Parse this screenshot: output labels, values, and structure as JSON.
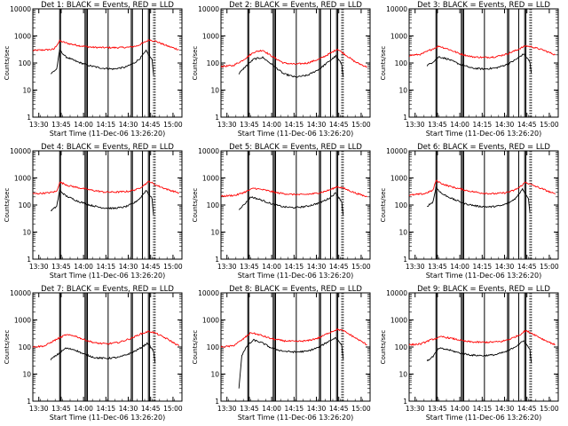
{
  "figure": {
    "panel_count": 9,
    "colors": {
      "events": "#000000",
      "lld": "#ff0000",
      "axis": "#000000",
      "background": "#ffffff"
    }
  },
  "chart_data": [
    {
      "type": "line",
      "detector": "Det 1",
      "title": "Det 1: BLACK = Events, RED = LLD",
      "xlabel": "Start Time (11-Dec-06 13:26:20)",
      "ylabel": "Counts/sec",
      "x_tick_labels": [
        "13:30",
        "13:45",
        "14:00",
        "14:15",
        "14:30",
        "14:45",
        "15:00"
      ],
      "y_tick_labels": [
        "1",
        "10",
        "100",
        "1000",
        "10000"
      ],
      "ylim": [
        1,
        10000
      ],
      "yscale": "log",
      "xlim": [
        "13:26",
        "15:06"
      ],
      "series": [
        {
          "name": "LLD",
          "color": "#ff0000",
          "x": [
            "13:26",
            "13:40",
            "13:44",
            "13:50",
            "13:58",
            "14:06",
            "14:14",
            "14:22",
            "14:30",
            "14:36",
            "14:40",
            "14:44",
            "14:48",
            "14:56",
            "15:04"
          ],
          "values": [
            290,
            320,
            650,
            520,
            430,
            380,
            370,
            370,
            380,
            430,
            550,
            720,
            650,
            430,
            310
          ]
        },
        {
          "name": "Events",
          "color": "#000000",
          "x": [
            "13:38",
            "13:42",
            "13:44",
            "13:48",
            "13:56",
            "14:04",
            "14:12",
            "14:20",
            "14:28",
            "14:34",
            "14:38",
            "14:42",
            "14:46",
            "14:47"
          ],
          "values": [
            40,
            60,
            300,
            170,
            110,
            80,
            65,
            60,
            70,
            100,
            150,
            280,
            130,
            35
          ]
        }
      ]
    },
    {
      "type": "line",
      "detector": "Det 2",
      "title": "Det 2: BLACK = Events, RED = LLD",
      "xlabel": "Start Time (11-Dec-06 13:26:20)",
      "ylabel": "Counts/sec",
      "x_tick_labels": [
        "13:30",
        "13:45",
        "14:00",
        "14:15",
        "14:30",
        "14:45",
        "15:00"
      ],
      "y_tick_labels": [
        "1",
        "10",
        "100",
        "1000",
        "10000"
      ],
      "ylim": [
        1,
        10000
      ],
      "yscale": "log",
      "xlim": [
        "13:26",
        "15:06"
      ],
      "series": [
        {
          "name": "LLD",
          "color": "#ff0000",
          "x": [
            "13:26",
            "13:34",
            "13:40",
            "13:48",
            "13:54",
            "14:00",
            "14:08",
            "14:16",
            "14:24",
            "14:32",
            "14:40",
            "14:44",
            "14:48",
            "14:56",
            "15:04"
          ],
          "values": [
            75,
            80,
            120,
            250,
            300,
            180,
            100,
            90,
            100,
            140,
            240,
            330,
            230,
            110,
            70
          ]
        },
        {
          "name": "Events",
          "color": "#000000",
          "x": [
            "13:38",
            "13:42",
            "13:48",
            "13:54",
            "14:00",
            "14:08",
            "14:16",
            "14:24",
            "14:32",
            "14:38",
            "14:43",
            "14:47",
            "14:48"
          ],
          "values": [
            40,
            70,
            140,
            160,
            90,
            40,
            30,
            35,
            60,
            110,
            180,
            90,
            30
          ]
        }
      ]
    },
    {
      "type": "line",
      "detector": "Det 3",
      "title": "Det 3: BLACK = Events, RED = LLD",
      "xlabel": "Start Time (11-Dec-06 13:26:20)",
      "ylabel": "Counts/sec",
      "x_tick_labels": [
        "13:30",
        "13:45",
        "14:00",
        "14:15",
        "14:30",
        "14:45",
        "15:00"
      ],
      "y_tick_labels": [
        "1",
        "10",
        "100",
        "1000",
        "10000"
      ],
      "ylim": [
        1,
        10000
      ],
      "yscale": "log",
      "xlim": [
        "13:26",
        "15:06"
      ],
      "series": [
        {
          "name": "LLD",
          "color": "#ff0000",
          "x": [
            "13:26",
            "13:34",
            "13:40",
            "13:46",
            "13:52",
            "14:00",
            "14:08",
            "14:16",
            "14:24",
            "14:32",
            "14:38",
            "14:44",
            "14:48",
            "14:56",
            "15:04"
          ],
          "values": [
            190,
            210,
            300,
            420,
            330,
            220,
            170,
            160,
            170,
            220,
            300,
            430,
            400,
            300,
            200
          ]
        },
        {
          "name": "Events",
          "color": "#000000",
          "x": [
            "13:38",
            "13:42",
            "13:46",
            "13:52",
            "14:00",
            "14:08",
            "14:16",
            "14:24",
            "14:32",
            "14:38",
            "14:43",
            "14:47",
            "14:48"
          ],
          "values": [
            80,
            110,
            170,
            140,
            90,
            65,
            60,
            65,
            90,
            140,
            220,
            110,
            40
          ]
        }
      ]
    },
    {
      "type": "line",
      "detector": "Det 4",
      "title": "Det 4: BLACK = Events, RED = LLD",
      "xlabel": "Start Time (11-Dec-06 13:26:20)",
      "ylabel": "Counts/sec",
      "x_tick_labels": [
        "13:30",
        "13:45",
        "14:00",
        "14:15",
        "14:30",
        "14:45",
        "15:00"
      ],
      "y_tick_labels": [
        "1",
        "10",
        "100",
        "1000",
        "10000"
      ],
      "ylim": [
        1,
        10000
      ],
      "yscale": "log",
      "xlim": [
        "13:26",
        "15:06"
      ],
      "series": [
        {
          "name": "LLD",
          "color": "#ff0000",
          "x": [
            "13:26",
            "13:36",
            "13:42",
            "13:44",
            "13:50",
            "13:58",
            "14:06",
            "14:14",
            "14:22",
            "14:30",
            "14:36",
            "14:40",
            "14:44",
            "14:48",
            "14:56",
            "15:04"
          ],
          "values": [
            260,
            280,
            320,
            700,
            520,
            420,
            350,
            300,
            300,
            320,
            380,
            520,
            750,
            560,
            380,
            280
          ]
        },
        {
          "name": "Events",
          "color": "#000000",
          "x": [
            "13:38",
            "13:42",
            "13:44",
            "13:48",
            "13:56",
            "14:04",
            "14:12",
            "14:20",
            "14:28",
            "14:34",
            "14:38",
            "14:42",
            "14:46",
            "14:47"
          ],
          "values": [
            60,
            90,
            350,
            220,
            140,
            100,
            80,
            75,
            85,
            120,
            180,
            350,
            170,
            40
          ]
        }
      ]
    },
    {
      "type": "line",
      "detector": "Det 5",
      "title": "Det 5: BLACK = Events, RED = LLD",
      "xlabel": "Start Time (11-Dec-06 13:26:20)",
      "ylabel": "Counts/sec",
      "x_tick_labels": [
        "13:30",
        "13:45",
        "14:00",
        "14:15",
        "14:30",
        "14:45",
        "15:00"
      ],
      "y_tick_labels": [
        "1",
        "10",
        "100",
        "1000",
        "10000"
      ],
      "ylim": [
        1,
        10000
      ],
      "yscale": "log",
      "xlim": [
        "13:26",
        "15:06"
      ],
      "series": [
        {
          "name": "LLD",
          "color": "#ff0000",
          "x": [
            "13:26",
            "13:36",
            "13:42",
            "13:48",
            "13:56",
            "14:04",
            "14:12",
            "14:20",
            "14:28",
            "14:34",
            "14:40",
            "14:44",
            "14:48",
            "14:56",
            "15:04"
          ],
          "values": [
            210,
            230,
            300,
            420,
            350,
            280,
            250,
            240,
            260,
            300,
            380,
            480,
            420,
            280,
            200
          ]
        },
        {
          "name": "Events",
          "color": "#000000",
          "x": [
            "13:38",
            "13:42",
            "13:46",
            "13:52",
            "14:00",
            "14:08",
            "14:16",
            "14:24",
            "14:32",
            "14:38",
            "14:43",
            "14:47",
            "14:48"
          ],
          "values": [
            70,
            110,
            200,
            160,
            110,
            85,
            80,
            90,
            120,
            170,
            280,
            130,
            40
          ]
        }
      ]
    },
    {
      "type": "line",
      "detector": "Det 6",
      "title": "Det 6: BLACK = Events, RED = LLD",
      "xlabel": "Start Time (11-Dec-06 13:26:20)",
      "ylabel": "Counts/sec",
      "x_tick_labels": [
        "13:30",
        "13:45",
        "14:00",
        "14:15",
        "14:30",
        "14:45",
        "15:00"
      ],
      "y_tick_labels": [
        "1",
        "10",
        "100",
        "1000",
        "10000"
      ],
      "ylim": [
        1,
        10000
      ],
      "yscale": "log",
      "xlim": [
        "13:26",
        "15:06"
      ],
      "series": [
        {
          "name": "LLD",
          "color": "#ff0000",
          "x": [
            "13:26",
            "13:36",
            "13:42",
            "13:44",
            "13:50",
            "13:58",
            "14:06",
            "14:14",
            "14:22",
            "14:30",
            "14:36",
            "14:40",
            "14:44",
            "14:48",
            "14:56",
            "15:04"
          ],
          "values": [
            230,
            260,
            350,
            800,
            550,
            420,
            330,
            280,
            260,
            280,
            340,
            450,
            700,
            560,
            380,
            250
          ]
        },
        {
          "name": "Events",
          "color": "#000000",
          "x": [
            "13:38",
            "13:42",
            "13:44",
            "13:48",
            "13:56",
            "14:04",
            "14:12",
            "14:20",
            "14:28",
            "14:34",
            "14:38",
            "14:42",
            "14:46",
            "14:47"
          ],
          "values": [
            90,
            130,
            450,
            260,
            160,
            110,
            90,
            85,
            95,
            130,
            190,
            400,
            180,
            50
          ]
        }
      ]
    },
    {
      "type": "line",
      "detector": "Det 7",
      "title": "Det 7: BLACK = Events, RED = LLD",
      "xlabel": "Start Time (11-Dec-06 13:26:20)",
      "ylabel": "Counts/sec",
      "x_tick_labels": [
        "13:30",
        "13:45",
        "14:00",
        "14:15",
        "14:30",
        "14:45",
        "15:00"
      ],
      "y_tick_labels": [
        "1",
        "10",
        "100",
        "1000",
        "10000"
      ],
      "ylim": [
        1,
        10000
      ],
      "yscale": "log",
      "xlim": [
        "13:26",
        "15:06"
      ],
      "series": [
        {
          "name": "LLD",
          "color": "#ff0000",
          "x": [
            "13:26",
            "13:34",
            "13:40",
            "13:48",
            "13:54",
            "14:00",
            "14:08",
            "14:16",
            "14:24",
            "14:32",
            "14:38",
            "14:44",
            "14:48",
            "14:56",
            "15:04"
          ],
          "values": [
            100,
            110,
            170,
            280,
            260,
            190,
            140,
            130,
            150,
            210,
            300,
            380,
            330,
            200,
            110
          ]
        },
        {
          "name": "Events",
          "color": "#000000",
          "x": [
            "13:38",
            "13:42",
            "13:48",
            "13:54",
            "14:00",
            "14:08",
            "14:16",
            "14:24",
            "14:32",
            "14:38",
            "14:43",
            "14:47",
            "14:48"
          ],
          "values": [
            35,
            50,
            90,
            80,
            55,
            40,
            38,
            42,
            60,
            90,
            140,
            70,
            25
          ]
        }
      ]
    },
    {
      "type": "line",
      "detector": "Det 8",
      "title": "Det 8: BLACK = Events, RED = LLD",
      "xlabel": "Start Time (11-Dec-06 13:26:20)",
      "ylabel": "Counts/sec",
      "x_tick_labels": [
        "13:30",
        "13:45",
        "14:00",
        "14:15",
        "14:30",
        "14:45",
        "15:00"
      ],
      "y_tick_labels": [
        "1",
        "10",
        "100",
        "1000",
        "10000"
      ],
      "ylim": [
        1,
        10000
      ],
      "yscale": "log",
      "xlim": [
        "13:26",
        "15:06"
      ],
      "series": [
        {
          "name": "LLD",
          "color": "#ff0000",
          "x": [
            "13:26",
            "13:34",
            "13:40",
            "13:46",
            "13:52",
            "14:00",
            "14:08",
            "14:16",
            "14:24",
            "14:32",
            "14:38",
            "14:44",
            "14:48",
            "14:56",
            "15:04"
          ],
          "values": [
            100,
            110,
            180,
            340,
            280,
            200,
            170,
            160,
            170,
            220,
            330,
            450,
            400,
            220,
            120
          ]
        },
        {
          "name": "Events",
          "color": "#000000",
          "x": [
            "13:38",
            "13:40",
            "13:44",
            "13:48",
            "13:54",
            "14:00",
            "14:08",
            "14:16",
            "14:24",
            "14:32",
            "14:38",
            "14:43",
            "14:47",
            "14:48"
          ],
          "values": [
            3,
            50,
            120,
            180,
            140,
            90,
            70,
            65,
            70,
            100,
            160,
            220,
            120,
            35
          ]
        }
      ]
    },
    {
      "type": "line",
      "detector": "Det 9",
      "title": "Det 9: BLACK = Events, RED = LLD",
      "xlabel": "Start Time (11-Dec-06 13:26:20)",
      "ylabel": "Counts/sec",
      "x_tick_labels": [
        "13:30",
        "13:45",
        "14:00",
        "14:15",
        "14:30",
        "14:45",
        "15:00"
      ],
      "y_tick_labels": [
        "1",
        "10",
        "100",
        "1000",
        "10000"
      ],
      "ylim": [
        1,
        10000
      ],
      "yscale": "log",
      "xlim": [
        "13:26",
        "15:06"
      ],
      "series": [
        {
          "name": "LLD",
          "color": "#ff0000",
          "x": [
            "13:26",
            "13:34",
            "13:40",
            "13:48",
            "13:56",
            "14:04",
            "14:12",
            "14:20",
            "14:28",
            "14:34",
            "14:40",
            "14:44",
            "14:48",
            "14:56",
            "15:04"
          ],
          "values": [
            120,
            130,
            180,
            240,
            200,
            160,
            150,
            150,
            160,
            200,
            280,
            400,
            330,
            190,
            120
          ]
        },
        {
          "name": "Events",
          "color": "#000000",
          "x": [
            "13:38",
            "13:42",
            "13:46",
            "13:52",
            "14:00",
            "14:08",
            "14:16",
            "14:24",
            "14:32",
            "14:38",
            "14:43",
            "14:47",
            "14:48"
          ],
          "values": [
            30,
            45,
            90,
            80,
            60,
            50,
            48,
            52,
            70,
            110,
            170,
            80,
            25
          ]
        }
      ]
    }
  ]
}
